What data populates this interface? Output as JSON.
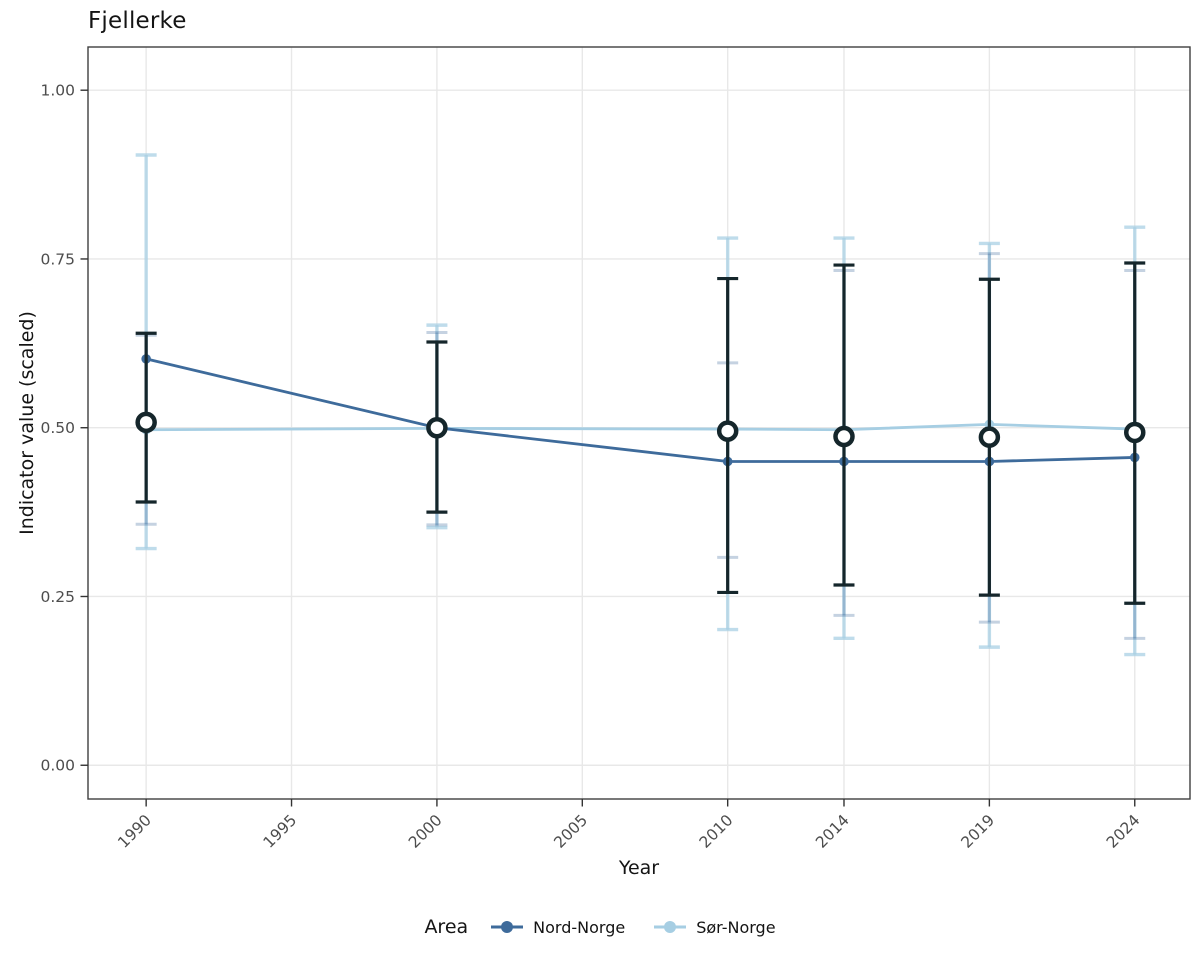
{
  "title": "Fjellerke",
  "axes": {
    "x_label": "Year",
    "y_label": "Indicator value (scaled)",
    "x_tick_labels": [
      "1990",
      "1995",
      "2000",
      "2005",
      "2010",
      "2014",
      "2019",
      "2024"
    ],
    "y_tick_labels": [
      "0.00",
      "0.25",
      "0.50",
      "0.75",
      "1.00"
    ]
  },
  "legend": {
    "title": "Area",
    "items": [
      {
        "label": "Nord-Norge",
        "color": "#3e6b9b"
      },
      {
        "label": "Sør-Norge",
        "color": "#a6cee3"
      }
    ]
  },
  "chart_data": {
    "type": "line",
    "title": "Fjellerke",
    "xlabel": "Year",
    "ylabel": "Indicator value (scaled)",
    "x": [
      1990,
      2000,
      2010,
      2014,
      2019,
      2024
    ],
    "x_axis_ticks": [
      1990,
      1995,
      2000,
      2005,
      2010,
      2014,
      2019,
      2024
    ],
    "y_axis_ticks": [
      0,
      0.25,
      0.5,
      0.75,
      1.0
    ],
    "xlim": [
      1988.0,
      2025.9
    ],
    "ylim": [
      -0.05,
      1.064
    ],
    "grid": true,
    "legend_position": "bottom",
    "series": [
      {
        "name": "Nord-Norge",
        "color": "#3e6b9b",
        "values": [
          0.602,
          0.5,
          0.45,
          0.45,
          0.45,
          0.456
        ],
        "ci_low": [
          0.357,
          0.356,
          0.308,
          0.222,
          0.212,
          0.188
        ],
        "ci_high": [
          0.637,
          0.641,
          0.596,
          0.733,
          0.758,
          0.733
        ]
      },
      {
        "name": "Sør-Norge",
        "color": "#a6cee3",
        "values": [
          0.497,
          0.499,
          0.498,
          0.497,
          0.505,
          0.498
        ],
        "ci_low": [
          0.321,
          0.352,
          0.201,
          0.188,
          0.175,
          0.164
        ],
        "ci_high": [
          0.904,
          0.652,
          0.781,
          0.781,
          0.773,
          0.797
        ]
      }
    ],
    "overall": {
      "name": "Combined (open circle)",
      "marker": "open-circle",
      "color": "#15262b",
      "values": [
        0.508,
        0.5,
        0.495,
        0.487,
        0.486,
        0.493
      ],
      "ci_low": [
        0.39,
        0.375,
        0.256,
        0.267,
        0.252,
        0.24
      ],
      "ci_high": [
        0.64,
        0.627,
        0.721,
        0.741,
        0.72,
        0.744
      ]
    }
  },
  "style_colors": {
    "grid": "#e8e8e8",
    "panel_border": "#3f3f3f",
    "tick_mark": "#333333",
    "tick_label": "#4d4d4d",
    "nord_faint": "rgba(62,107,155,0.30)",
    "sor_faint": "rgba(166,206,227,0.72)"
  }
}
